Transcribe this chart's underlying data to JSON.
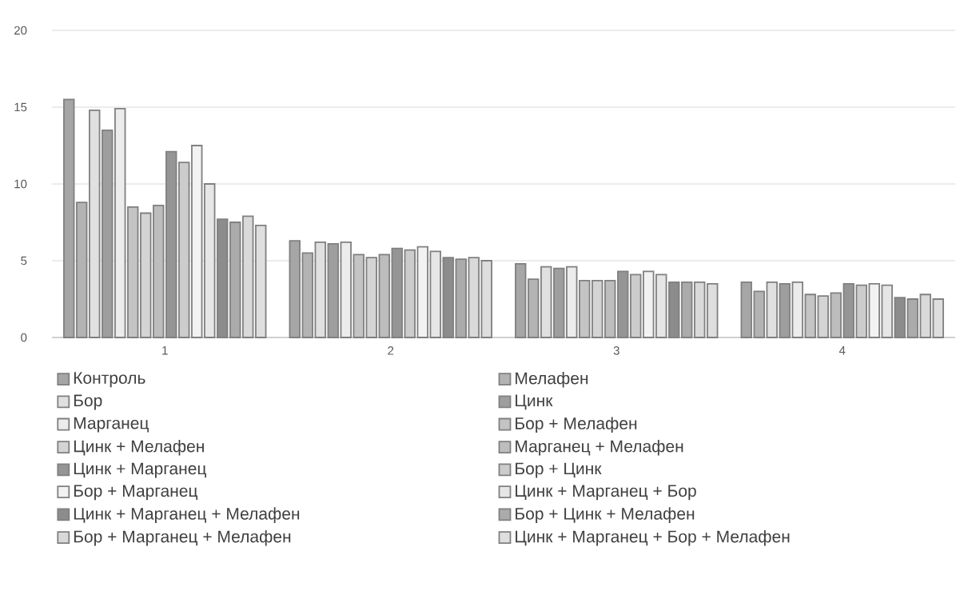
{
  "chart_data": {
    "type": "bar",
    "categories": [
      "1",
      "2",
      "3",
      "4"
    ],
    "ylim": [
      0,
      20
    ],
    "yticks": [
      0,
      5,
      10,
      15,
      20
    ],
    "grid": "y",
    "legend": "bottom",
    "series": [
      {
        "name": "Контроль",
        "color": "#a6a6a6",
        "values": [
          15.5,
          6.3,
          4.8,
          3.6
        ]
      },
      {
        "name": "Мелафен",
        "color": "#b3b3b3",
        "values": [
          8.8,
          5.5,
          3.8,
          3.0
        ]
      },
      {
        "name": "Бор",
        "color": "#e0e0e0",
        "values": [
          14.8,
          6.2,
          4.6,
          3.6
        ]
      },
      {
        "name": "Цинк",
        "color": "#9e9e9e",
        "values": [
          13.5,
          6.1,
          4.5,
          3.5
        ]
      },
      {
        "name": "Марганец",
        "color": "#ececec",
        "values": [
          14.9,
          6.2,
          4.6,
          3.6
        ]
      },
      {
        "name": "Бор + Мелафен",
        "color": "#c4c4c4",
        "values": [
          8.5,
          5.4,
          3.7,
          2.8
        ]
      },
      {
        "name": "Цинк + Мелафен",
        "color": "#d4d4d4",
        "values": [
          8.1,
          5.2,
          3.7,
          2.7
        ]
      },
      {
        "name": "Марганец + Мелафен",
        "color": "#bdbdbd",
        "values": [
          8.6,
          5.4,
          3.7,
          2.9
        ]
      },
      {
        "name": "Цинк + Марганец",
        "color": "#959595",
        "values": [
          12.1,
          5.8,
          4.3,
          3.5
        ]
      },
      {
        "name": "Бор + Цинк",
        "color": "#cccccc",
        "values": [
          11.4,
          5.7,
          4.1,
          3.4
        ]
      },
      {
        "name": "Бор + Марганец",
        "color": "#f2f2f2",
        "values": [
          12.5,
          5.9,
          4.3,
          3.5
        ]
      },
      {
        "name": "Цинк + Марганец + Бор",
        "color": "#e6e6e6",
        "values": [
          10.0,
          5.6,
          4.1,
          3.4
        ]
      },
      {
        "name": "Цинк + Марганец + Мелафен",
        "color": "#8c8c8c",
        "values": [
          7.7,
          5.2,
          3.6,
          2.6
        ]
      },
      {
        "name": "Бор + Цинк + Мелафен",
        "color": "#ababab",
        "values": [
          7.5,
          5.1,
          3.6,
          2.5
        ]
      },
      {
        "name": "Бор + Марганец + Мелафен",
        "color": "#d9d9d9",
        "values": [
          7.9,
          5.2,
          3.6,
          2.8
        ]
      },
      {
        "name": "Цинк + Марганец + Бор + Мелафен",
        "color": "#dedede",
        "values": [
          7.3,
          5.0,
          3.5,
          2.5
        ]
      }
    ]
  }
}
